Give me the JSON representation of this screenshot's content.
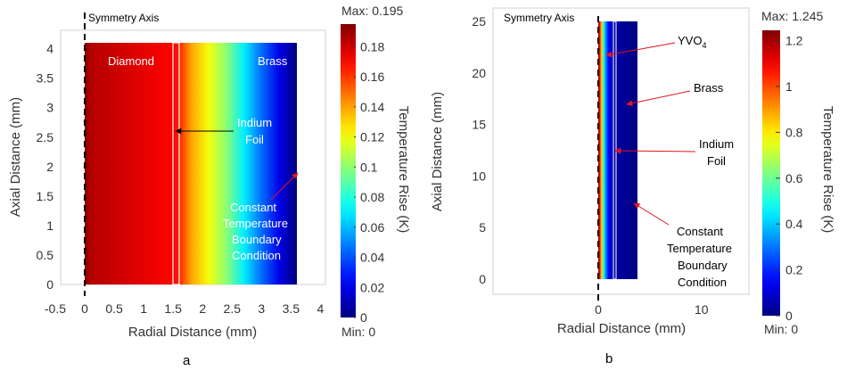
{
  "chart_data": [
    {
      "type": "heatmap",
      "panel_label": "a",
      "xlabel": "Radial Distance (mm)",
      "ylabel": "Axial Distance (mm)",
      "xlim": [
        -0.5,
        4
      ],
      "ylim": [
        -0.15,
        4.3
      ],
      "xticks": [
        "-0.5",
        "0",
        "0.5",
        "1",
        "1.5",
        "2",
        "2.5",
        "3",
        "3.5",
        "4"
      ],
      "yticks": [
        "0",
        "0.5",
        "1",
        "1.5",
        "2",
        "2.5",
        "3",
        "3.5",
        "4"
      ],
      "domain": {
        "x": [
          0,
          3.6
        ],
        "y": [
          0,
          4.1
        ]
      },
      "foil_x": [
        1.5,
        1.6
      ],
      "temperature_profile": [
        {
          "x": 0,
          "value": 0.195
        },
        {
          "x": 0.1,
          "value": 0.185
        },
        {
          "x": 1.5,
          "value": 0.17
        },
        {
          "x": 1.6,
          "value": 0.165
        },
        {
          "x": 1.8,
          "value": 0.14
        },
        {
          "x": 2.1,
          "value": 0.12
        },
        {
          "x": 2.4,
          "value": 0.1
        },
        {
          "x": 2.7,
          "value": 0.07
        },
        {
          "x": 3.0,
          "value": 0.045
        },
        {
          "x": 3.3,
          "value": 0.02
        },
        {
          "x": 3.6,
          "value": 0.0
        }
      ],
      "colorbar": {
        "label": "Temperature Rise (K)",
        "max_text": "Max: 0.195",
        "min_text": "Min: 0",
        "max": 0.195,
        "min": 0,
        "ticks": [
          "0",
          "0.02",
          "0.04",
          "0.06",
          "0.08",
          "0.1",
          "0.12",
          "0.14",
          "0.16",
          "0.18"
        ]
      },
      "annotations": {
        "symmetry": "Symmetry Axis",
        "diamond": "Diamond",
        "brass": "Brass",
        "indium_1": "Indium",
        "indium_2": "Foil",
        "bc_1": "Constant",
        "bc_2": "Temperature",
        "bc_3": "Boundary",
        "bc_4": "Condition"
      }
    },
    {
      "type": "heatmap",
      "panel_label": "b",
      "xlabel": "Radial Distance (mm)",
      "ylabel": "Axial Distance (mm)",
      "xlim": [
        -10,
        15
      ],
      "ylim": [
        -1.5,
        26.5
      ],
      "xticks": [
        "0",
        "10"
      ],
      "yticks": [
        "0",
        "5",
        "10",
        "15",
        "20",
        "25"
      ],
      "domain": {
        "x": [
          0,
          3.8
        ],
        "y": [
          0,
          25
        ]
      },
      "foil_x": [
        1.5,
        1.7
      ],
      "temperature_profile": [
        {
          "x": 0,
          "value": 1.245
        },
        {
          "x": 0.15,
          "value": 1.1
        },
        {
          "x": 0.3,
          "value": 0.85
        },
        {
          "x": 0.5,
          "value": 0.55
        },
        {
          "x": 0.7,
          "value": 0.35
        },
        {
          "x": 1.0,
          "value": 0.15
        },
        {
          "x": 1.5,
          "value": 0.05
        },
        {
          "x": 3.8,
          "value": 0.0
        }
      ],
      "colorbar": {
        "label": "Temperature Rise (K)",
        "max_text": "Max: 1.245",
        "min_text": "Min: 0",
        "max": 1.245,
        "min": 0,
        "ticks": [
          "0",
          "0.2",
          "0.4",
          "0.6",
          "0.8",
          "1",
          "1.2"
        ]
      },
      "annotations": {
        "symmetry": "Symmetry Axis",
        "yvo": "YVO",
        "yvo_sub": "4",
        "brass": "Brass",
        "indium_1": "Indium",
        "indium_2": "Foil",
        "bc_1": "Constant",
        "bc_2": "Temperature",
        "bc_3": "Boundary",
        "bc_4": "Condition"
      }
    }
  ]
}
